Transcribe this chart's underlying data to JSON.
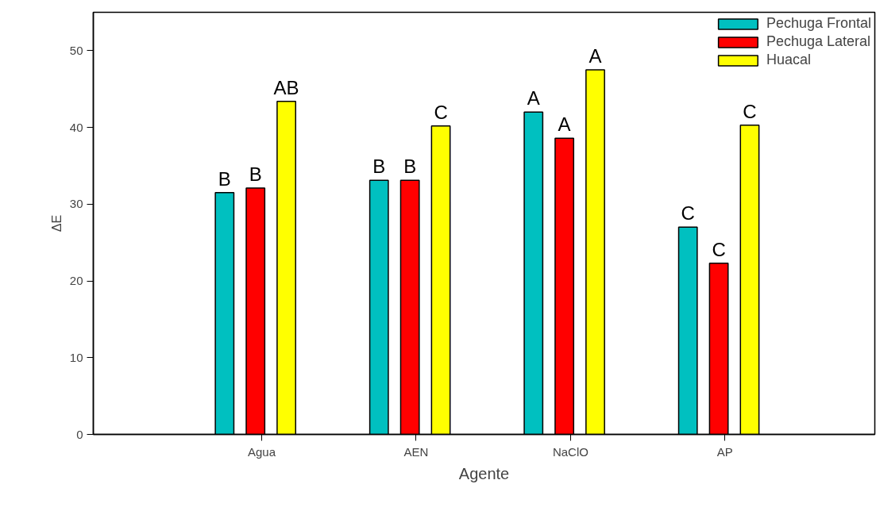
{
  "chart_data": {
    "type": "bar",
    "xlabel": "Agente",
    "ylabel": "ΔE",
    "categories": [
      "Agua",
      "AEN",
      "NaClO",
      "AP"
    ],
    "series": [
      {
        "name": "Pechuga Frontal",
        "color": "#00c0c0",
        "values": [
          31.5,
          33.1,
          42.0,
          27.0
        ],
        "value_labels": [
          "B",
          "B",
          "A",
          "C"
        ]
      },
      {
        "name": "Pechuga Lateral",
        "color": "#ff0000",
        "values": [
          32.1,
          33.1,
          38.6,
          22.3
        ],
        "value_labels": [
          "B",
          "B",
          "A",
          "C"
        ]
      },
      {
        "name": "Huacal",
        "color": "#ffff00",
        "values": [
          43.4,
          40.2,
          47.5,
          40.3
        ],
        "value_labels": [
          "AB",
          "C",
          "A",
          "C"
        ]
      }
    ],
    "ylim": [
      0,
      55
    ],
    "yticks": [
      0,
      10,
      20,
      30,
      40,
      50
    ],
    "grid": false,
    "legend": "top right"
  }
}
